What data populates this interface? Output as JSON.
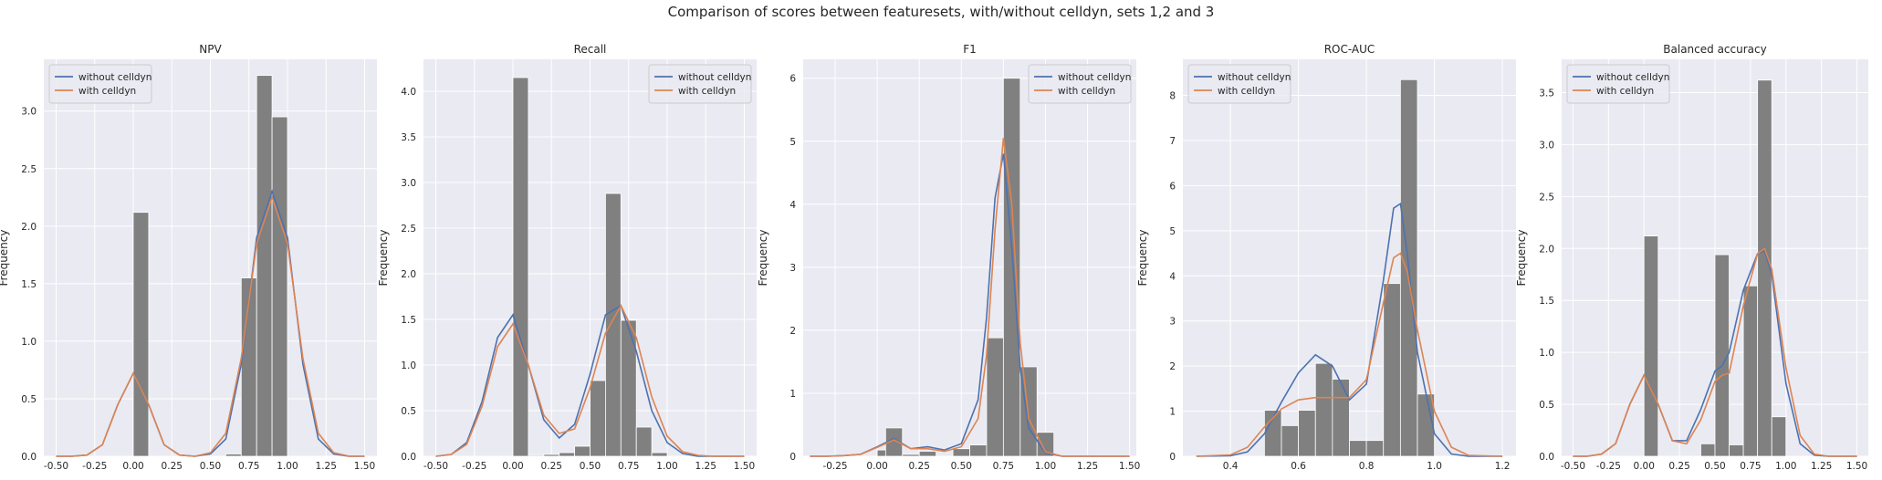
{
  "suptitle": "Comparison of scores between featuresets, with/without celldyn, sets 1,2 and 3",
  "colors": {
    "without": "#4c72b0",
    "with": "#dd8452",
    "bars": "#808080",
    "panel_bg": "#eaeaf2",
    "grid": "#ffffff",
    "text": "#262626"
  },
  "chart_data": [
    {
      "type": "histogram",
      "title": "NPV",
      "xlabel": "",
      "ylabel": "Frequency",
      "xlim": [
        -0.58,
        1.58
      ],
      "ylim": [
        0,
        3.45
      ],
      "xticks": [
        -0.5,
        -0.25,
        0.0,
        0.25,
        0.5,
        0.75,
        1.0,
        1.25,
        1.5
      ],
      "xtick_labels": [
        "-0.50",
        "-0.25",
        "0.00",
        "0.25",
        "0.50",
        "0.75",
        "1.00",
        "1.25",
        "1.50"
      ],
      "yticks": [
        0,
        0.5,
        1.0,
        1.5,
        2.0,
        2.5,
        3.0
      ],
      "ytick_labels": [
        "0.0",
        "0.5",
        "1.0",
        "1.5",
        "2.0",
        "2.5",
        "3.0"
      ],
      "bins": [
        [
          0.0,
          0.1,
          2.12
        ],
        [
          0.6,
          0.7,
          0.02
        ],
        [
          0.7,
          0.8,
          1.55
        ],
        [
          0.8,
          0.9,
          3.31
        ],
        [
          0.9,
          1.0,
          2.95
        ]
      ],
      "legend": {
        "position": "upper left",
        "entries": [
          "without celldyn",
          "with celldyn"
        ]
      },
      "series": [
        {
          "name": "without celldyn",
          "x": [
            -0.5,
            -0.4,
            -0.3,
            -0.2,
            -0.1,
            0.0,
            0.1,
            0.2,
            0.3,
            0.4,
            0.5,
            0.6,
            0.7,
            0.8,
            0.9,
            1.0,
            1.1,
            1.2,
            1.3,
            1.4,
            1.5
          ],
          "y": [
            0,
            0,
            0.01,
            0.1,
            0.45,
            0.72,
            0.45,
            0.1,
            0.01,
            0,
            0.02,
            0.15,
            0.8,
            1.9,
            2.3,
            1.9,
            0.8,
            0.15,
            0.02,
            0,
            0
          ]
        },
        {
          "name": "with celldyn",
          "x": [
            -0.5,
            -0.4,
            -0.3,
            -0.2,
            -0.1,
            0.0,
            0.1,
            0.2,
            0.3,
            0.4,
            0.5,
            0.6,
            0.7,
            0.8,
            0.9,
            1.0,
            1.1,
            1.2,
            1.3,
            1.4,
            1.5
          ],
          "y": [
            0,
            0,
            0.01,
            0.1,
            0.45,
            0.72,
            0.45,
            0.1,
            0.01,
            0,
            0.03,
            0.2,
            0.85,
            1.85,
            2.25,
            1.85,
            0.85,
            0.2,
            0.03,
            0,
            0
          ]
        }
      ]
    },
    {
      "type": "histogram",
      "title": "Recall",
      "xlabel": "",
      "ylabel": "Frequency",
      "xlim": [
        -0.58,
        1.58
      ],
      "ylim": [
        0,
        4.35
      ],
      "xticks": [
        -0.5,
        -0.25,
        0.0,
        0.25,
        0.5,
        0.75,
        1.0,
        1.25,
        1.5
      ],
      "xtick_labels": [
        "-0.50",
        "-0.25",
        "0.00",
        "0.25",
        "0.50",
        "0.75",
        "1.00",
        "1.25",
        "1.50"
      ],
      "yticks": [
        0,
        0.5,
        1.0,
        1.5,
        2.0,
        2.5,
        3.0,
        3.5,
        4.0
      ],
      "ytick_labels": [
        "0.0",
        "0.5",
        "1.0",
        "1.5",
        "2.0",
        "2.5",
        "3.0",
        "3.5",
        "4.0"
      ],
      "bins": [
        [
          0.0,
          0.1,
          4.15
        ],
        [
          0.1,
          0.2,
          0.01
        ],
        [
          0.2,
          0.3,
          0.02
        ],
        [
          0.3,
          0.4,
          0.04
        ],
        [
          0.4,
          0.5,
          0.11
        ],
        [
          0.5,
          0.6,
          0.83
        ],
        [
          0.6,
          0.7,
          2.88
        ],
        [
          0.7,
          0.8,
          1.49
        ],
        [
          0.8,
          0.9,
          0.32
        ],
        [
          0.9,
          1.0,
          0.04
        ]
      ],
      "legend": {
        "position": "upper right",
        "entries": [
          "without celldyn",
          "with celldyn"
        ]
      },
      "series": [
        {
          "name": "without celldyn",
          "x": [
            -0.5,
            -0.4,
            -0.3,
            -0.2,
            -0.1,
            0.0,
            0.1,
            0.2,
            0.3,
            0.4,
            0.5,
            0.6,
            0.7,
            0.8,
            0.9,
            1.0,
            1.1,
            1.2,
            1.3,
            1.4,
            1.5
          ],
          "y": [
            0,
            0.02,
            0.15,
            0.6,
            1.3,
            1.55,
            1.0,
            0.4,
            0.2,
            0.35,
            0.9,
            1.55,
            1.65,
            1.15,
            0.5,
            0.15,
            0.03,
            0,
            0,
            0,
            0
          ]
        },
        {
          "name": "with celldyn",
          "x": [
            -0.5,
            -0.4,
            -0.3,
            -0.2,
            -0.1,
            0.0,
            0.1,
            0.2,
            0.3,
            0.4,
            0.5,
            0.6,
            0.7,
            0.8,
            0.9,
            1.0,
            1.1,
            1.2,
            1.3,
            1.4,
            1.5
          ],
          "y": [
            0,
            0.02,
            0.13,
            0.55,
            1.2,
            1.45,
            1.0,
            0.45,
            0.25,
            0.3,
            0.75,
            1.35,
            1.65,
            1.3,
            0.65,
            0.22,
            0.05,
            0.01,
            0,
            0,
            0
          ]
        }
      ]
    },
    {
      "type": "histogram",
      "title": "F1",
      "xlabel": "",
      "ylabel": "Frequency",
      "xlim": [
        -0.44,
        1.54
      ],
      "ylim": [
        0,
        6.3
      ],
      "xticks": [
        -0.25,
        0.0,
        0.25,
        0.5,
        0.75,
        1.0,
        1.25,
        1.5
      ],
      "xtick_labels": [
        "-0.25",
        "0.00",
        "0.25",
        "0.50",
        "0.75",
        "1.00",
        "1.25",
        "1.50"
      ],
      "yticks": [
        0,
        1,
        2,
        3,
        4,
        5,
        6
      ],
      "ytick_labels": [
        "0",
        "1",
        "2",
        "3",
        "4",
        "5",
        "6"
      ],
      "bins": [
        [
          0.0,
          0.1,
          0.1
        ],
        [
          0.05,
          0.15,
          0.45
        ],
        [
          0.15,
          0.25,
          0.03
        ],
        [
          0.25,
          0.35,
          0.08
        ],
        [
          0.45,
          0.55,
          0.12
        ],
        [
          0.55,
          0.65,
          0.18
        ],
        [
          0.65,
          0.75,
          1.88
        ],
        [
          0.75,
          0.85,
          6.0
        ],
        [
          0.85,
          0.95,
          1.42
        ],
        [
          0.95,
          1.05,
          0.38
        ]
      ],
      "legend": {
        "position": "upper right",
        "entries": [
          "without celldyn",
          "with celldyn"
        ]
      },
      "series": [
        {
          "name": "without celldyn",
          "x": [
            -0.4,
            -0.3,
            -0.2,
            -0.1,
            0.0,
            0.1,
            0.2,
            0.3,
            0.4,
            0.5,
            0.6,
            0.65,
            0.7,
            0.75,
            0.8,
            0.85,
            0.9,
            1.0,
            1.1,
            1.2,
            1.3,
            1.4,
            1.5
          ],
          "y": [
            0,
            0,
            0.01,
            0.03,
            0.15,
            0.28,
            0.12,
            0.15,
            0.1,
            0.2,
            0.9,
            2.2,
            4.1,
            4.8,
            3.3,
            1.4,
            0.45,
            0.05,
            0,
            0,
            0,
            0,
            0
          ]
        },
        {
          "name": "with celldyn",
          "x": [
            -0.4,
            -0.3,
            -0.2,
            -0.1,
            0.0,
            0.1,
            0.2,
            0.3,
            0.4,
            0.5,
            0.6,
            0.65,
            0.7,
            0.75,
            0.8,
            0.85,
            0.9,
            1.0,
            1.1,
            1.2,
            1.3,
            1.4,
            1.5
          ],
          "y": [
            0,
            0,
            0.01,
            0.03,
            0.14,
            0.26,
            0.12,
            0.12,
            0.08,
            0.15,
            0.6,
            1.6,
            3.6,
            5.05,
            4.0,
            1.8,
            0.6,
            0.07,
            0,
            0,
            0,
            0,
            0
          ]
        }
      ]
    },
    {
      "type": "histogram",
      "title": "ROC-AUC",
      "xlabel": "",
      "ylabel": "Frequency",
      "xlim": [
        0.26,
        1.24
      ],
      "ylim": [
        0,
        8.8
      ],
      "xticks": [
        0.4,
        0.6,
        0.8,
        1.0,
        1.2
      ],
      "xtick_labels": [
        "0.4",
        "0.6",
        "0.8",
        "1.0",
        "1.2"
      ],
      "yticks": [
        0,
        1,
        2,
        3,
        4,
        5,
        6,
        7,
        8
      ],
      "ytick_labels": [
        "0",
        "1",
        "2",
        "3",
        "4",
        "5",
        "6",
        "7",
        "8"
      ],
      "bins": [
        [
          0.5,
          0.55,
          1.02
        ],
        [
          0.55,
          0.6,
          0.68
        ],
        [
          0.6,
          0.65,
          1.02
        ],
        [
          0.65,
          0.7,
          2.06
        ],
        [
          0.7,
          0.75,
          1.71
        ],
        [
          0.75,
          0.8,
          0.35
        ],
        [
          0.8,
          0.85,
          0.35
        ],
        [
          0.85,
          0.9,
          3.83
        ],
        [
          0.9,
          0.95,
          8.35
        ],
        [
          0.95,
          1.0,
          1.38
        ]
      ],
      "legend": {
        "position": "upper left",
        "entries": [
          "without celldyn",
          "with celldyn"
        ]
      },
      "series": [
        {
          "name": "without celldyn",
          "x": [
            0.3,
            0.4,
            0.45,
            0.5,
            0.55,
            0.6,
            0.65,
            0.7,
            0.75,
            0.8,
            0.85,
            0.88,
            0.9,
            0.92,
            0.95,
            1.0,
            1.05,
            1.1,
            1.2
          ],
          "y": [
            0,
            0.01,
            0.1,
            0.5,
            1.2,
            1.85,
            2.25,
            2.0,
            1.25,
            1.6,
            3.9,
            5.5,
            5.6,
            4.5,
            2.3,
            0.5,
            0.05,
            0,
            0
          ]
        },
        {
          "name": "with celldyn",
          "x": [
            0.3,
            0.4,
            0.45,
            0.5,
            0.55,
            0.6,
            0.65,
            0.7,
            0.75,
            0.8,
            0.85,
            0.88,
            0.9,
            0.92,
            0.95,
            1.0,
            1.05,
            1.1,
            1.2
          ],
          "y": [
            0,
            0.03,
            0.2,
            0.65,
            1.05,
            1.25,
            1.3,
            1.3,
            1.3,
            1.7,
            3.4,
            4.4,
            4.5,
            4.1,
            2.8,
            1.0,
            0.2,
            0.02,
            0
          ]
        }
      ]
    },
    {
      "type": "histogram",
      "title": "Balanced accuracy",
      "xlabel": "",
      "ylabel": "Frequency",
      "xlim": [
        -0.58,
        1.58
      ],
      "ylim": [
        0,
        3.82
      ],
      "xticks": [
        -0.5,
        -0.25,
        0.0,
        0.25,
        0.5,
        0.75,
        1.0,
        1.25,
        1.5
      ],
      "xtick_labels": [
        "-0.50",
        "-0.25",
        "0.00",
        "0.25",
        "0.50",
        "0.75",
        "1.00",
        "1.25",
        "1.50"
      ],
      "yticks": [
        0,
        0.5,
        1.0,
        1.5,
        2.0,
        2.5,
        3.0,
        3.5
      ],
      "ytick_labels": [
        "0.0",
        "0.5",
        "1.0",
        "1.5",
        "2.0",
        "2.5",
        "3.0",
        "3.5"
      ],
      "bins": [
        [
          0.0,
          0.1,
          2.12
        ],
        [
          0.4,
          0.5,
          0.12
        ],
        [
          0.5,
          0.6,
          1.94
        ],
        [
          0.6,
          0.7,
          0.11
        ],
        [
          0.7,
          0.8,
          1.64
        ],
        [
          0.8,
          0.9,
          3.62
        ],
        [
          0.9,
          1.0,
          0.38
        ]
      ],
      "legend": {
        "position": "upper left",
        "entries": [
          "without celldyn",
          "with celldyn"
        ]
      },
      "series": [
        {
          "name": "without celldyn",
          "x": [
            -0.5,
            -0.4,
            -0.3,
            -0.2,
            -0.1,
            0.0,
            0.1,
            0.2,
            0.3,
            0.4,
            0.5,
            0.55,
            0.6,
            0.7,
            0.8,
            0.85,
            0.9,
            1.0,
            1.1,
            1.2,
            1.3,
            1.4,
            1.5
          ],
          "y": [
            0,
            0,
            0.02,
            0.12,
            0.5,
            0.78,
            0.5,
            0.15,
            0.15,
            0.45,
            0.82,
            0.87,
            1.0,
            1.6,
            1.95,
            1.98,
            1.75,
            0.7,
            0.12,
            0.01,
            0,
            0,
            0
          ]
        },
        {
          "name": "with celldyn",
          "x": [
            -0.5,
            -0.4,
            -0.3,
            -0.2,
            -0.1,
            0.0,
            0.1,
            0.2,
            0.3,
            0.4,
            0.5,
            0.55,
            0.6,
            0.7,
            0.8,
            0.85,
            0.9,
            1.0,
            1.1,
            1.2,
            1.3,
            1.4,
            1.5
          ],
          "y": [
            0,
            0,
            0.02,
            0.12,
            0.5,
            0.78,
            0.5,
            0.15,
            0.12,
            0.35,
            0.72,
            0.78,
            0.8,
            1.45,
            1.95,
            2.0,
            1.8,
            0.85,
            0.2,
            0.02,
            0,
            0,
            0
          ]
        }
      ]
    }
  ]
}
